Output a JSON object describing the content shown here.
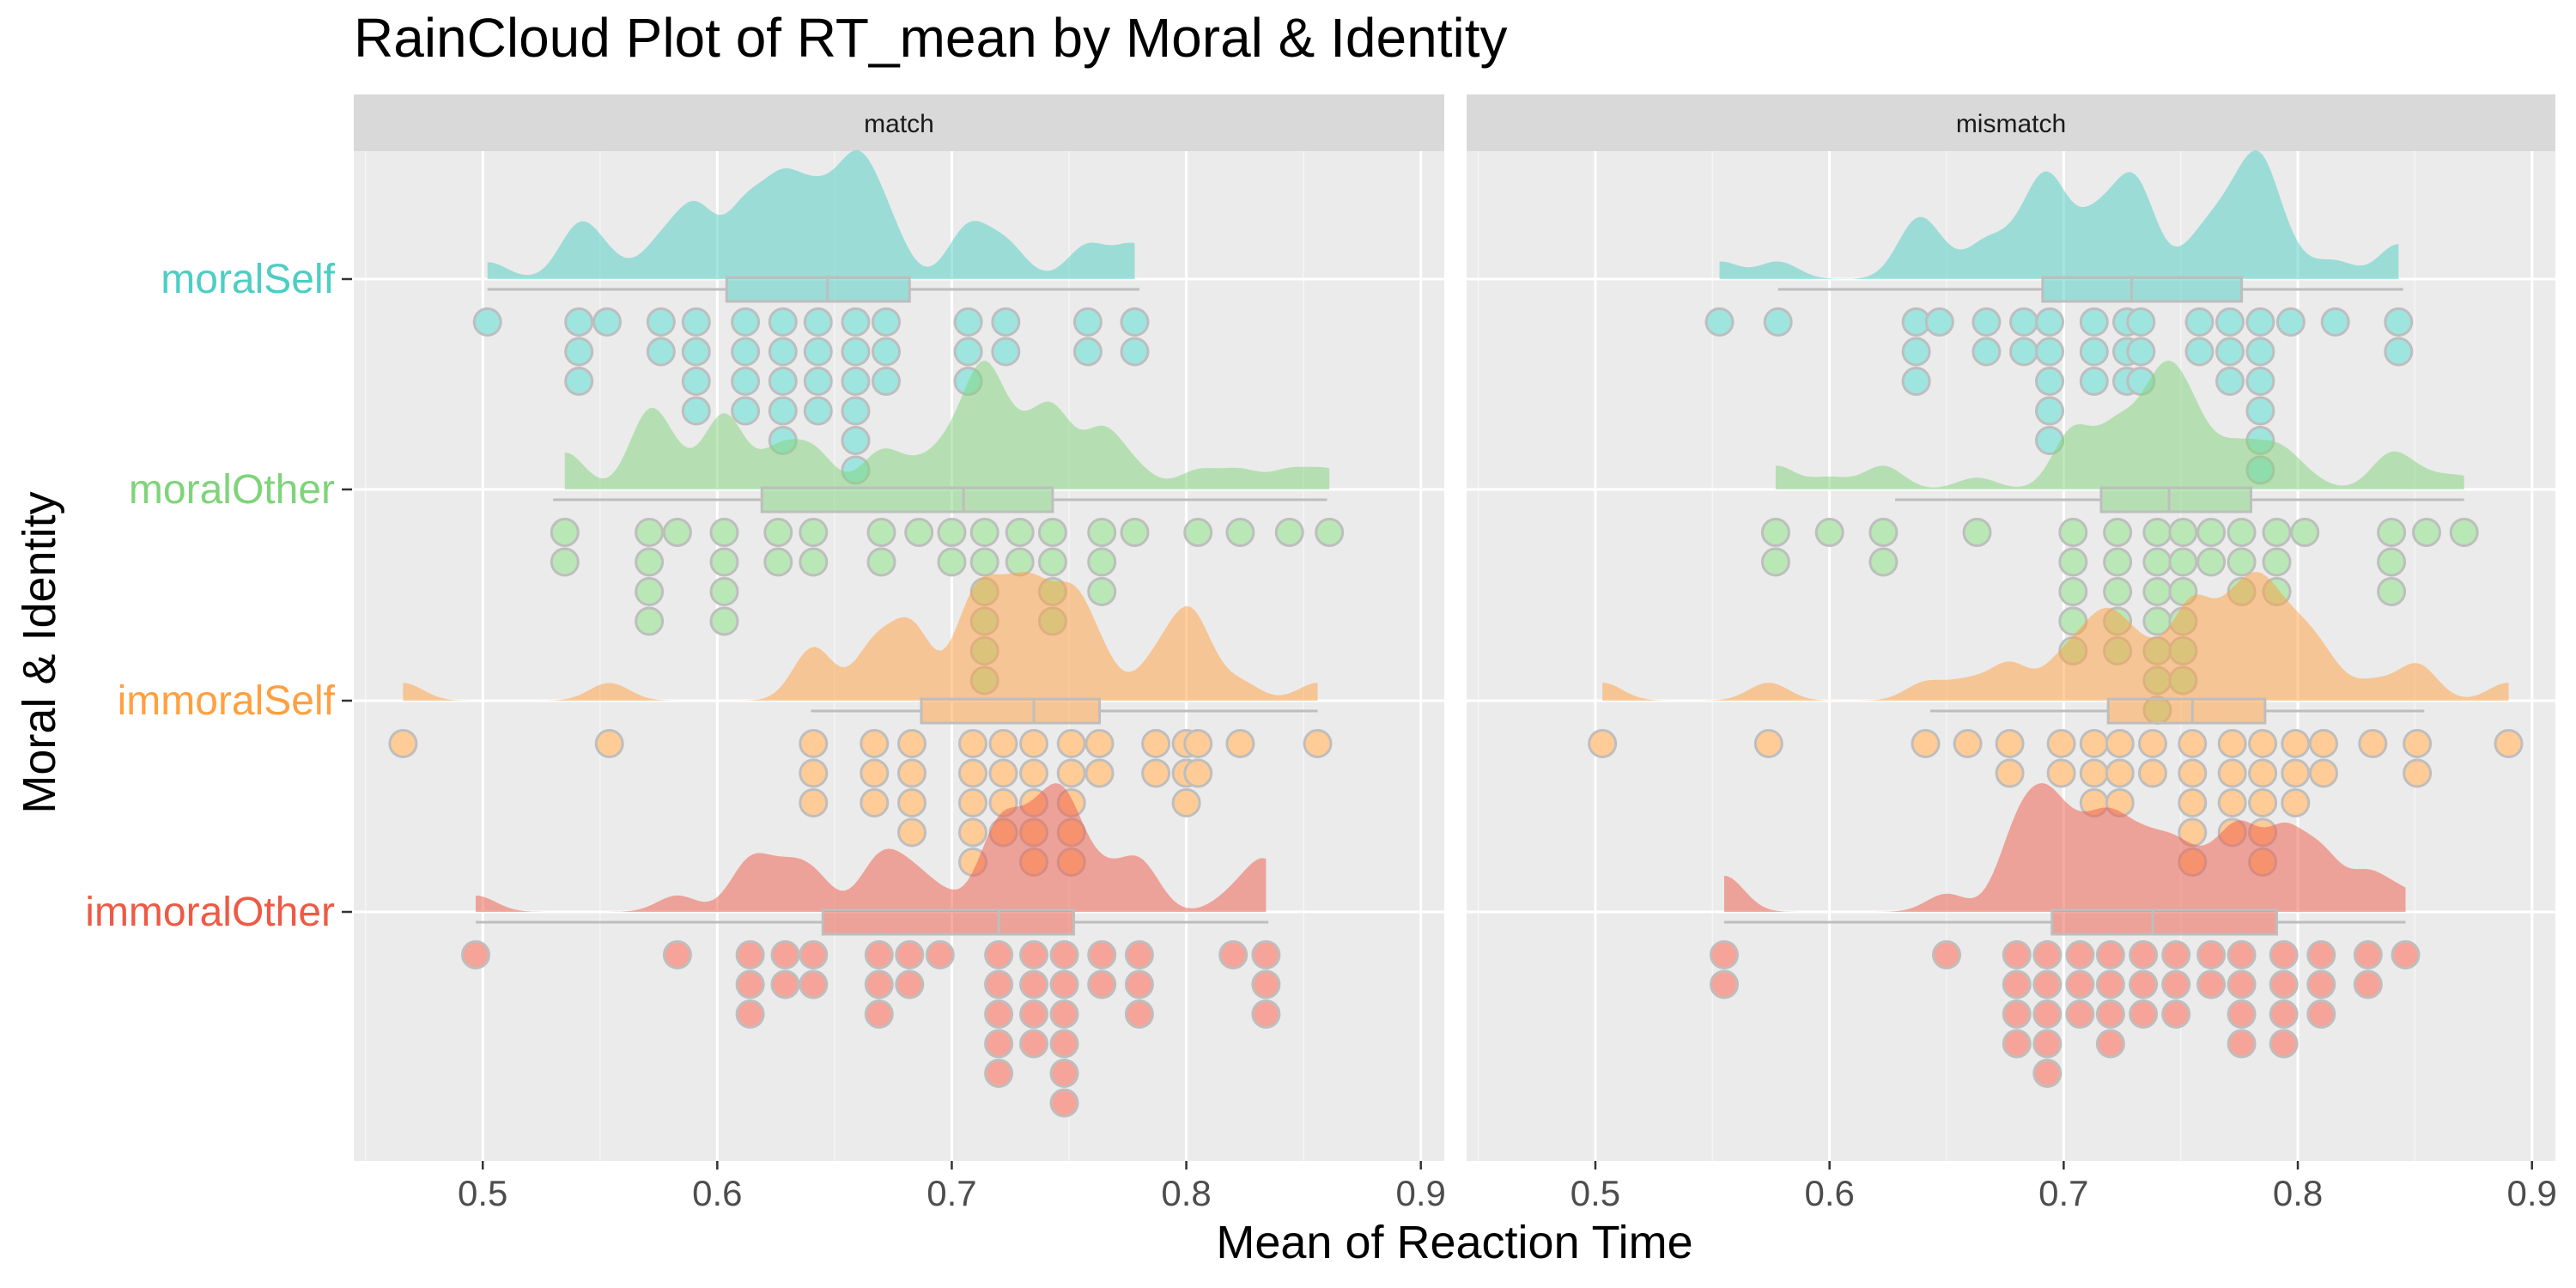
{
  "chart_data": {
    "type": "raincloud",
    "title": "RainCloud Plot of RT_mean by Moral & Identity",
    "xlabel": "Mean of Reaction Time",
    "ylabel": "Moral & Identity",
    "xlim": [
      0.445,
      0.91
    ],
    "x_ticks": [
      0.5,
      0.6,
      0.7,
      0.8,
      0.9
    ],
    "x_tick_labels": [
      "0.5",
      "0.6",
      "0.7",
      "0.8",
      "0.9"
    ],
    "grid": true,
    "legend": "none",
    "facets": [
      "match",
      "mismatch"
    ],
    "categories": [
      "moralSelf",
      "moralOther",
      "immoralSelf",
      "immoralOther"
    ],
    "colors": {
      "moralSelf": "#4ECDC4",
      "moralOther": "#7FD47A",
      "immoralSelf": "#FFA040",
      "immoralOther": "#EE5A45"
    },
    "series": {
      "match": {
        "moralSelf": {
          "box": {
            "min": 0.502,
            "q1": 0.604,
            "median": 0.647,
            "q3": 0.682,
            "max": 0.78
          },
          "points": [
            0.502,
            0.541,
            0.541,
            0.541,
            0.553,
            0.576,
            0.576,
            0.591,
            0.591,
            0.591,
            0.591,
            0.612,
            0.612,
            0.612,
            0.612,
            0.628,
            0.628,
            0.628,
            0.628,
            0.628,
            0.643,
            0.643,
            0.643,
            0.643,
            0.659,
            0.659,
            0.659,
            0.659,
            0.659,
            0.659,
            0.672,
            0.672,
            0.672,
            0.707,
            0.707,
            0.707,
            0.723,
            0.723,
            0.758,
            0.758,
            0.778,
            0.778
          ]
        },
        "moralOther": {
          "box": {
            "min": 0.53,
            "q1": 0.619,
            "median": 0.705,
            "q3": 0.743,
            "max": 0.86
          },
          "points": [
            0.535,
            0.535,
            0.571,
            0.571,
            0.571,
            0.571,
            0.583,
            0.603,
            0.603,
            0.603,
            0.603,
            0.626,
            0.626,
            0.641,
            0.641,
            0.67,
            0.67,
            0.686,
            0.7,
            0.7,
            0.714,
            0.714,
            0.714,
            0.714,
            0.714,
            0.714,
            0.729,
            0.729,
            0.743,
            0.743,
            0.743,
            0.743,
            0.764,
            0.764,
            0.764,
            0.778,
            0.805,
            0.823,
            0.844,
            0.861
          ]
        },
        "immoralSelf": {
          "box": {
            "min": 0.64,
            "q1": 0.687,
            "median": 0.735,
            "q3": 0.763,
            "max": 0.856
          },
          "points": [
            0.466,
            0.554,
            0.641,
            0.641,
            0.641,
            0.667,
            0.667,
            0.667,
            0.683,
            0.683,
            0.683,
            0.683,
            0.709,
            0.709,
            0.709,
            0.709,
            0.709,
            0.722,
            0.722,
            0.722,
            0.722,
            0.735,
            0.735,
            0.735,
            0.735,
            0.735,
            0.751,
            0.751,
            0.751,
            0.751,
            0.751,
            0.763,
            0.763,
            0.787,
            0.787,
            0.8,
            0.8,
            0.8,
            0.805,
            0.805,
            0.823,
            0.856
          ]
        },
        "immoralOther": {
          "box": {
            "min": 0.497,
            "q1": 0.645,
            "median": 0.72,
            "q3": 0.752,
            "max": 0.835
          },
          "points": [
            0.497,
            0.583,
            0.614,
            0.614,
            0.614,
            0.629,
            0.629,
            0.641,
            0.641,
            0.669,
            0.669,
            0.669,
            0.682,
            0.682,
            0.695,
            0.72,
            0.72,
            0.72,
            0.72,
            0.72,
            0.735,
            0.735,
            0.735,
            0.735,
            0.748,
            0.748,
            0.748,
            0.748,
            0.748,
            0.748,
            0.764,
            0.764,
            0.78,
            0.78,
            0.78,
            0.82,
            0.834,
            0.834,
            0.834
          ]
        }
      },
      "mismatch": {
        "moralSelf": {
          "box": {
            "min": 0.578,
            "q1": 0.691,
            "median": 0.729,
            "q3": 0.776,
            "max": 0.845
          },
          "points": [
            0.553,
            0.578,
            0.637,
            0.637,
            0.637,
            0.647,
            0.667,
            0.667,
            0.683,
            0.683,
            0.694,
            0.694,
            0.694,
            0.694,
            0.694,
            0.713,
            0.713,
            0.713,
            0.727,
            0.727,
            0.727,
            0.733,
            0.733,
            0.733,
            0.758,
            0.758,
            0.771,
            0.771,
            0.771,
            0.784,
            0.784,
            0.784,
            0.784,
            0.784,
            0.784,
            0.797,
            0.816,
            0.843,
            0.843
          ]
        },
        "moralOther": {
          "box": {
            "min": 0.628,
            "q1": 0.716,
            "median": 0.745,
            "q3": 0.78,
            "max": 0.871
          },
          "points": [
            0.577,
            0.577,
            0.6,
            0.623,
            0.623,
            0.663,
            0.704,
            0.704,
            0.704,
            0.704,
            0.704,
            0.723,
            0.723,
            0.723,
            0.723,
            0.723,
            0.74,
            0.74,
            0.74,
            0.74,
            0.74,
            0.74,
            0.74,
            0.751,
            0.751,
            0.751,
            0.751,
            0.751,
            0.751,
            0.763,
            0.763,
            0.776,
            0.776,
            0.776,
            0.791,
            0.791,
            0.791,
            0.803,
            0.84,
            0.84,
            0.84,
            0.855,
            0.871
          ]
        },
        "immoralSelf": {
          "box": {
            "min": 0.643,
            "q1": 0.719,
            "median": 0.755,
            "q3": 0.786,
            "max": 0.854
          },
          "points": [
            0.503,
            0.574,
            0.641,
            0.659,
            0.677,
            0.677,
            0.699,
            0.699,
            0.713,
            0.713,
            0.713,
            0.724,
            0.724,
            0.724,
            0.738,
            0.738,
            0.755,
            0.755,
            0.755,
            0.755,
            0.755,
            0.772,
            0.772,
            0.772,
            0.772,
            0.785,
            0.785,
            0.785,
            0.785,
            0.785,
            0.799,
            0.799,
            0.799,
            0.811,
            0.811,
            0.832,
            0.851,
            0.851,
            0.89
          ]
        },
        "immoralOther": {
          "box": {
            "min": 0.555,
            "q1": 0.695,
            "median": 0.738,
            "q3": 0.791,
            "max": 0.846
          },
          "points": [
            0.555,
            0.555,
            0.65,
            0.68,
            0.68,
            0.68,
            0.68,
            0.693,
            0.693,
            0.693,
            0.693,
            0.693,
            0.707,
            0.707,
            0.707,
            0.72,
            0.72,
            0.72,
            0.72,
            0.734,
            0.734,
            0.734,
            0.748,
            0.748,
            0.748,
            0.763,
            0.763,
            0.776,
            0.776,
            0.776,
            0.776,
            0.794,
            0.794,
            0.794,
            0.794,
            0.81,
            0.81,
            0.81,
            0.83,
            0.83,
            0.846
          ]
        }
      }
    }
  }
}
